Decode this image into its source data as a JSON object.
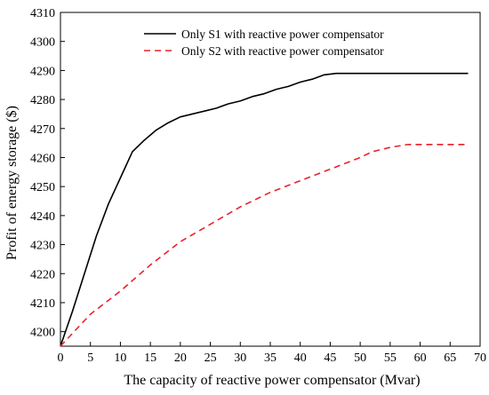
{
  "chart_data": {
    "type": "line",
    "xlabel": "The capacity of reactive power compensator (Mvar)",
    "ylabel": "Profit of energy storage ($)",
    "xlim": [
      0,
      70
    ],
    "ylim": [
      4195,
      4310
    ],
    "xticks": [
      0,
      5,
      10,
      15,
      20,
      25,
      30,
      35,
      40,
      45,
      50,
      55,
      60,
      65,
      70
    ],
    "yticks": [
      4200,
      4210,
      4220,
      4230,
      4240,
      4250,
      4260,
      4270,
      4280,
      4290,
      4300,
      4310
    ],
    "grid": false,
    "legend_position": "top-right",
    "series": [
      {
        "name": "Only S1 with reactive power compensator",
        "color": "#000000",
        "style": "solid",
        "x": [
          0,
          2,
          4,
          6,
          8,
          10,
          12,
          14,
          16,
          18,
          20,
          22,
          24,
          26,
          28,
          30,
          32,
          34,
          36,
          38,
          40,
          42,
          44,
          46,
          48,
          50,
          55,
          60,
          65,
          68
        ],
        "y": [
          4195,
          4207,
          4220,
          4233,
          4244,
          4253,
          4262,
          4266,
          4269.5,
          4272,
          4274,
          4275,
          4276,
          4277,
          4278.5,
          4279.5,
          4281,
          4282,
          4283.5,
          4284.5,
          4286,
          4287,
          4288.5,
          4289,
          4289,
          4289,
          4289,
          4289,
          4289,
          4289
        ]
      },
      {
        "name": "Only S2 with reactive power compensator",
        "color": "#e8222b",
        "style": "dashed",
        "x": [
          0,
          5,
          10,
          15,
          20,
          25,
          30,
          35,
          40,
          45,
          50,
          52,
          55,
          58,
          60,
          65,
          68
        ],
        "y": [
          4195,
          4206,
          4214,
          4223,
          4231,
          4237,
          4243,
          4248,
          4252,
          4256,
          4260,
          4262,
          4263.5,
          4264.5,
          4264.5,
          4264.5,
          4264.5
        ]
      }
    ]
  }
}
